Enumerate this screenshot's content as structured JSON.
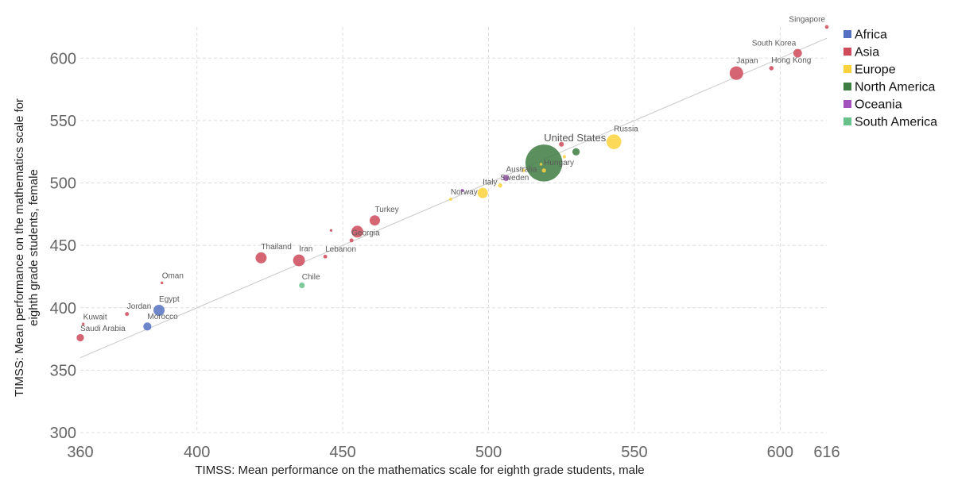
{
  "chart_data": {
    "type": "scatter",
    "xlabel": "TIMSS: Mean performance on the mathematics scale for eighth grade students, male",
    "ylabel": "TIMSS: Mean performance on the mathematics scale for eighth grade students, female",
    "xlim": [
      360,
      616
    ],
    "ylim": [
      300,
      625
    ],
    "x_ticks": [
      {
        "value": 360,
        "label": "360"
      },
      {
        "value": 400,
        "label": "400"
      },
      {
        "value": 450,
        "label": "450"
      },
      {
        "value": 500,
        "label": "500"
      },
      {
        "value": 550,
        "label": "550"
      },
      {
        "value": 600,
        "label": "600"
      },
      {
        "value": 616,
        "label": "616"
      }
    ],
    "y_ticks": [
      {
        "value": 300,
        "label": "300"
      },
      {
        "value": 350,
        "label": "350"
      },
      {
        "value": 400,
        "label": "400"
      },
      {
        "value": 450,
        "label": "450"
      },
      {
        "value": 500,
        "label": "500"
      },
      {
        "value": 550,
        "label": "550"
      },
      {
        "value": 600,
        "label": "600"
      }
    ],
    "grid": true,
    "reference_line": {
      "from": [
        360,
        360
      ],
      "to": [
        616,
        616
      ],
      "color": "#c8c8c8"
    },
    "legend_position": "right",
    "legend": [
      {
        "name": "Africa",
        "color": "#5470c0"
      },
      {
        "name": "Asia",
        "color": "#cf4a5a"
      },
      {
        "name": "Europe",
        "color": "#fcd23c"
      },
      {
        "name": "North America",
        "color": "#3e7d42"
      },
      {
        "name": "Oceania",
        "color": "#a351bd"
      },
      {
        "name": "South America",
        "color": "#66c28a"
      }
    ],
    "points": [
      {
        "label": "Singapore",
        "region": "Asia",
        "x": 616,
        "y": 625,
        "size": 1.5
      },
      {
        "label": "South Korea",
        "region": "Asia",
        "x": 606,
        "y": 604,
        "size": 3.5
      },
      {
        "label": "Hong Kong",
        "region": "Asia",
        "x": 597,
        "y": 592,
        "size": 1.8
      },
      {
        "label": "Japan",
        "region": "Asia",
        "x": 585,
        "y": 588,
        "size": 5.5
      },
      {
        "label": "Russia",
        "region": "Europe",
        "x": 543,
        "y": 533,
        "size": 6.0
      },
      {
        "label": "United States",
        "region": "North America",
        "x": 519,
        "y": 516,
        "size": 15.0
      },
      {
        "label": "",
        "region": "North America",
        "x": 530,
        "y": 525,
        "size": 3.0
      },
      {
        "label": "",
        "region": "Asia",
        "x": 525,
        "y": 531,
        "size": 2.0
      },
      {
        "label": "",
        "region": "Europe",
        "x": 526,
        "y": 521,
        "size": 1.3
      },
      {
        "label": "Hungary",
        "region": "Europe",
        "x": 519,
        "y": 510,
        "size": 1.7
      },
      {
        "label": "",
        "region": "Europe",
        "x": 518,
        "y": 515,
        "size": 1.1
      },
      {
        "label": "",
        "region": "Europe",
        "x": 512,
        "y": 510,
        "size": 1.3
      },
      {
        "label": "Australia",
        "region": "Oceania",
        "x": 506,
        "y": 504,
        "size": 2.5
      },
      {
        "label": "Sweden",
        "region": "Europe",
        "x": 504,
        "y": 498,
        "size": 1.7
      },
      {
        "label": "Italy",
        "region": "Europe",
        "x": 498,
        "y": 492,
        "size": 4.2
      },
      {
        "label": "",
        "region": "Oceania",
        "x": 491,
        "y": 494,
        "size": 1.3
      },
      {
        "label": "Norway",
        "region": "Europe",
        "x": 487,
        "y": 487,
        "size": 1.3
      },
      {
        "label": "Turkey",
        "region": "Asia",
        "x": 461,
        "y": 470,
        "size": 4.2
      },
      {
        "label": "",
        "region": "Asia",
        "x": 446,
        "y": 462,
        "size": 1.1
      },
      {
        "label": "",
        "region": "Asia",
        "x": 455,
        "y": 461,
        "size": 4.8
      },
      {
        "label": "Georgia",
        "region": "Asia",
        "x": 453,
        "y": 454,
        "size": 1.6
      },
      {
        "label": "Lebanon",
        "region": "Asia",
        "x": 444,
        "y": 441,
        "size": 1.6
      },
      {
        "label": "Thailand",
        "region": "Asia",
        "x": 422,
        "y": 440,
        "size": 4.5
      },
      {
        "label": "Iran",
        "region": "Asia",
        "x": 435,
        "y": 438,
        "size": 4.8
      },
      {
        "label": "Chile",
        "region": "South America",
        "x": 436,
        "y": 418,
        "size": 2.3
      },
      {
        "label": "Oman",
        "region": "Asia",
        "x": 388,
        "y": 420,
        "size": 1.1
      },
      {
        "label": "Egypt",
        "region": "Africa",
        "x": 387,
        "y": 398,
        "size": 4.5
      },
      {
        "label": "Jordan",
        "region": "Asia",
        "x": 376,
        "y": 395,
        "size": 1.6
      },
      {
        "label": "Morocco",
        "region": "Africa",
        "x": 383,
        "y": 385,
        "size": 3.3
      },
      {
        "label": "Kuwait",
        "region": "Asia",
        "x": 361,
        "y": 387,
        "size": 1.1
      },
      {
        "label": "Saudi Arabia",
        "region": "Asia",
        "x": 360,
        "y": 376,
        "size": 3.0
      }
    ]
  }
}
